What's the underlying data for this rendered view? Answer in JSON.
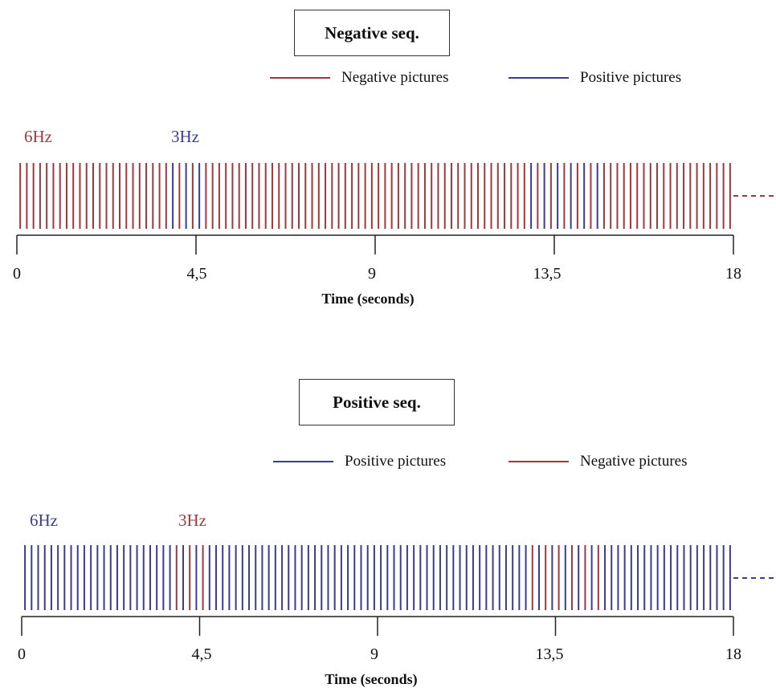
{
  "colors": {
    "negative": "#a0393e",
    "positive": "#3a3d8f",
    "axis": "#222222"
  },
  "panels": [
    {
      "title": "Negative seq.",
      "legend": [
        {
          "label": "Negative pictures",
          "color": "#a0393e"
        },
        {
          "label": "Positive pictures",
          "color": "#3a3d8f"
        }
      ],
      "base_rate_label": "6Hz",
      "base_color": "#a0393e",
      "oddball_rate_label": "3Hz",
      "oddball_color": "#3a3d8f",
      "axis": {
        "ticks": [
          "0",
          "4,5",
          "9",
          "13,5",
          "18"
        ],
        "title": "Time (seconds)"
      }
    },
    {
      "title": "Positive seq.",
      "legend": [
        {
          "label": "Positive pictures",
          "color": "#3a3d8f"
        },
        {
          "label": "Negative pictures",
          "color": "#a0393e"
        }
      ],
      "base_rate_label": "6Hz",
      "base_color": "#3a3d8f",
      "oddball_rate_label": "3Hz",
      "oddball_color": "#a0393e",
      "axis": {
        "ticks": [
          "0",
          "4,5",
          "9",
          "13,5",
          "18"
        ],
        "title": "Time (seconds)"
      }
    }
  ],
  "chart_data": {
    "type": "sequence",
    "x_range_seconds": [
      0,
      18
    ],
    "stimuli_count": 108,
    "oddball_blocks": [
      {
        "start_seconds": 3.833,
        "end_seconds": 4.833
      },
      {
        "start_seconds": 12.833,
        "end_seconds": 14.833
      }
    ]
  }
}
